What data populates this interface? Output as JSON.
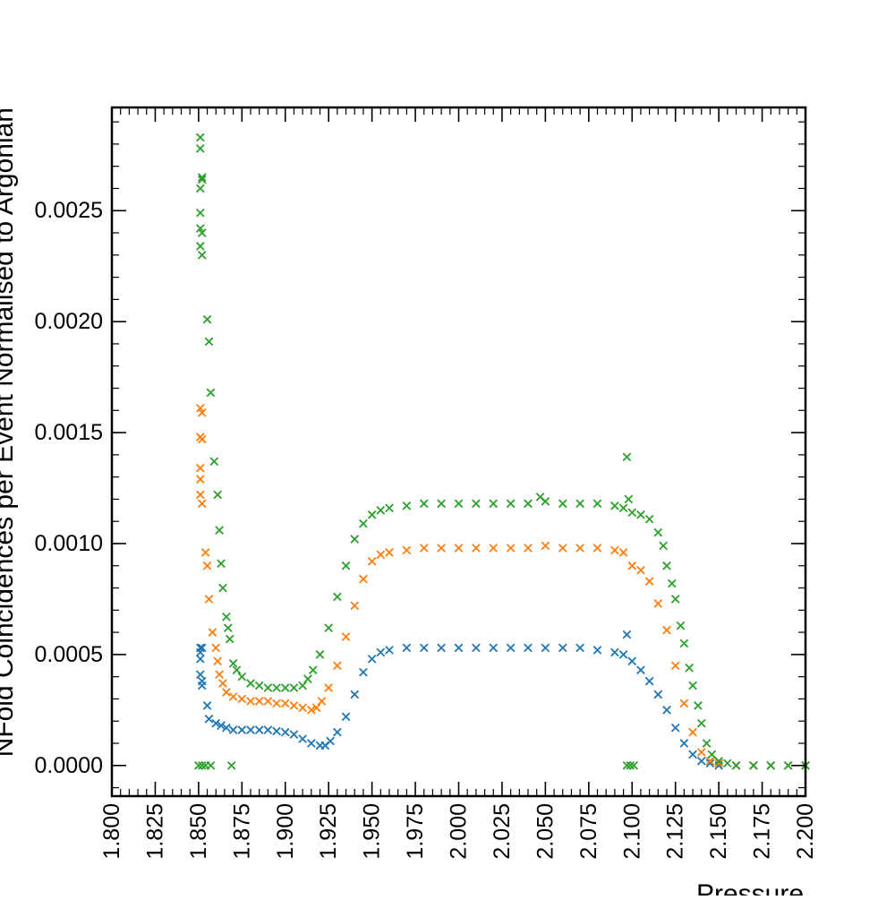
{
  "chart_data": {
    "type": "scatter",
    "xlabel": "Pressure",
    "ylabel": "NFold Coincidences per Event Normalised to Argonian",
    "xlim": [
      1.8,
      2.2
    ],
    "ylim": [
      -0.000138,
      0.002965
    ],
    "xticks": [
      "1.800",
      "1.825",
      "1.850",
      "1.875",
      "1.900",
      "1.925",
      "1.950",
      "1.975",
      "2.000",
      "2.025",
      "2.050",
      "2.075",
      "2.100",
      "2.125",
      "2.150",
      "2.175",
      "2.200"
    ],
    "yticks": [
      "0.0000",
      "0.0005",
      "0.0010",
      "0.0015",
      "0.0020",
      "0.0025"
    ],
    "marker": "x",
    "grid": false,
    "legend": "none",
    "series": [
      {
        "color": "#1f77b4",
        "points": [
          [
            1.851,
            0.00053
          ],
          [
            1.851,
            0.00051
          ],
          [
            1.851,
            0.00048
          ],
          [
            1.851,
            0.00041
          ],
          [
            1.852,
            0.00038
          ],
          [
            1.852,
            0.00036
          ],
          [
            1.852,
            0.00053
          ],
          [
            1.855,
            0.00027
          ],
          [
            1.856,
            0.00021
          ],
          [
            1.86,
            0.00019
          ],
          [
            1.863,
            0.00018
          ],
          [
            1.866,
            0.00017
          ],
          [
            1.87,
            0.00016
          ],
          [
            1.875,
            0.00016
          ],
          [
            1.88,
            0.00016
          ],
          [
            1.885,
            0.00016
          ],
          [
            1.89,
            0.00016
          ],
          [
            1.895,
            0.000155
          ],
          [
            1.9,
            0.00015
          ],
          [
            1.905,
            0.00014
          ],
          [
            1.91,
            0.00012
          ],
          [
            1.915,
            0.0001
          ],
          [
            1.92,
            9e-05
          ],
          [
            1.923,
            9e-05
          ],
          [
            1.926,
            0.00011
          ],
          [
            1.93,
            0.00015
          ],
          [
            1.935,
            0.00022
          ],
          [
            1.94,
            0.00032
          ],
          [
            1.945,
            0.00042
          ],
          [
            1.95,
            0.00048
          ],
          [
            1.955,
            0.00051
          ],
          [
            1.96,
            0.00052
          ],
          [
            1.97,
            0.00053
          ],
          [
            1.98,
            0.00053
          ],
          [
            1.99,
            0.00053
          ],
          [
            2.0,
            0.00053
          ],
          [
            2.01,
            0.00053
          ],
          [
            2.02,
            0.00053
          ],
          [
            2.03,
            0.00053
          ],
          [
            2.04,
            0.00053
          ],
          [
            2.05,
            0.00053
          ],
          [
            2.06,
            0.00053
          ],
          [
            2.07,
            0.00053
          ],
          [
            2.08,
            0.00052
          ],
          [
            2.09,
            0.00051
          ],
          [
            2.095,
            0.0005
          ],
          [
            2.097,
            0.00059
          ],
          [
            2.1,
            0.00047
          ],
          [
            2.105,
            0.00043
          ],
          [
            2.11,
            0.00038
          ],
          [
            2.115,
            0.00032
          ],
          [
            2.12,
            0.00025
          ],
          [
            2.125,
            0.00017
          ],
          [
            2.13,
            0.0001
          ],
          [
            2.135,
            5e-05
          ],
          [
            2.14,
            2e-05
          ],
          [
            2.145,
            1e-05
          ],
          [
            2.15,
            0.0
          ],
          [
            2.16,
            0.0
          ],
          [
            2.17,
            0.0
          ],
          [
            2.18,
            0.0
          ],
          [
            2.19,
            0.0
          ],
          [
            2.2,
            0.0
          ]
        ]
      },
      {
        "color": "#ff7f0e",
        "points": [
          [
            1.851,
            0.00161
          ],
          [
            1.851,
            0.00148
          ],
          [
            1.851,
            0.00134
          ],
          [
            1.851,
            0.00129
          ],
          [
            1.851,
            0.00122
          ],
          [
            1.852,
            0.00118
          ],
          [
            1.852,
            0.00159
          ],
          [
            1.852,
            0.00147
          ],
          [
            1.854,
            0.00096
          ],
          [
            1.855,
            0.0009
          ],
          [
            1.856,
            0.00075
          ],
          [
            1.858,
            0.0006
          ],
          [
            1.86,
            0.00053
          ],
          [
            1.861,
            0.00047
          ],
          [
            1.862,
            0.00041
          ],
          [
            1.864,
            0.00037
          ],
          [
            1.866,
            0.00033
          ],
          [
            1.87,
            0.00031
          ],
          [
            1.875,
            0.0003
          ],
          [
            1.88,
            0.00029
          ],
          [
            1.885,
            0.00029
          ],
          [
            1.89,
            0.00029
          ],
          [
            1.895,
            0.00028
          ],
          [
            1.9,
            0.00028
          ],
          [
            1.905,
            0.00027
          ],
          [
            1.91,
            0.00026
          ],
          [
            1.915,
            0.00025
          ],
          [
            1.918,
            0.00026
          ],
          [
            1.921,
            0.00029
          ],
          [
            1.925,
            0.00035
          ],
          [
            1.93,
            0.00045
          ],
          [
            1.935,
            0.00058
          ],
          [
            1.94,
            0.00072
          ],
          [
            1.945,
            0.00084
          ],
          [
            1.95,
            0.00092
          ],
          [
            1.955,
            0.00095
          ],
          [
            1.96,
            0.00096
          ],
          [
            1.97,
            0.00097
          ],
          [
            1.98,
            0.00098
          ],
          [
            1.99,
            0.00098
          ],
          [
            2.0,
            0.00098
          ],
          [
            2.01,
            0.00098
          ],
          [
            2.02,
            0.00098
          ],
          [
            2.03,
            0.00098
          ],
          [
            2.04,
            0.00098
          ],
          [
            2.05,
            0.00099
          ],
          [
            2.06,
            0.00098
          ],
          [
            2.07,
            0.00098
          ],
          [
            2.08,
            0.00098
          ],
          [
            2.09,
            0.00097
          ],
          [
            2.095,
            0.00096
          ],
          [
            2.1,
            0.0009
          ],
          [
            2.105,
            0.00088
          ],
          [
            2.11,
            0.00083
          ],
          [
            2.115,
            0.00073
          ],
          [
            2.12,
            0.00061
          ],
          [
            2.125,
            0.00045
          ],
          [
            2.13,
            0.00028
          ],
          [
            2.135,
            0.00015
          ],
          [
            2.14,
            6e-05
          ],
          [
            2.145,
            2e-05
          ],
          [
            2.15,
            1e-05
          ],
          [
            2.16,
            0.0
          ],
          [
            2.17,
            0.0
          ],
          [
            2.18,
            0.0
          ],
          [
            2.19,
            0.0
          ],
          [
            2.2,
            0.0
          ]
        ]
      },
      {
        "color": "#2ca02c",
        "points": [
          [
            1.85,
            0.0
          ],
          [
            1.852,
            0.0
          ],
          [
            1.854,
            0.0
          ],
          [
            1.857,
            0.0
          ],
          [
            1.869,
            0.0
          ],
          [
            1.851,
            0.00283
          ],
          [
            1.851,
            0.00278
          ],
          [
            1.852,
            0.00265
          ],
          [
            1.851,
            0.0026
          ],
          [
            1.851,
            0.00249
          ],
          [
            1.851,
            0.00242
          ],
          [
            1.852,
            0.0024
          ],
          [
            1.851,
            0.00234
          ],
          [
            1.852,
            0.0023
          ],
          [
            1.852,
            0.00264
          ],
          [
            1.855,
            0.00201
          ],
          [
            1.856,
            0.00191
          ],
          [
            1.857,
            0.00168
          ],
          [
            1.859,
            0.00137
          ],
          [
            1.861,
            0.00122
          ],
          [
            1.862,
            0.00106
          ],
          [
            1.863,
            0.00091
          ],
          [
            1.864,
            0.0008
          ],
          [
            1.866,
            0.00067
          ],
          [
            1.867,
            0.00062
          ],
          [
            1.868,
            0.00057
          ],
          [
            1.87,
            0.00046
          ],
          [
            1.872,
            0.00043
          ],
          [
            1.875,
            0.0004
          ],
          [
            1.88,
            0.00037
          ],
          [
            1.885,
            0.00036
          ],
          [
            1.89,
            0.00035
          ],
          [
            1.895,
            0.00035
          ],
          [
            1.9,
            0.00035
          ],
          [
            1.905,
            0.00035
          ],
          [
            1.91,
            0.00036
          ],
          [
            1.913,
            0.00039
          ],
          [
            1.916,
            0.00043
          ],
          [
            1.92,
            0.0005
          ],
          [
            1.925,
            0.00062
          ],
          [
            1.93,
            0.00076
          ],
          [
            1.935,
            0.0009
          ],
          [
            1.94,
            0.00102
          ],
          [
            1.945,
            0.00109
          ],
          [
            1.95,
            0.00113
          ],
          [
            1.955,
            0.00115
          ],
          [
            1.96,
            0.00116
          ],
          [
            1.97,
            0.00117
          ],
          [
            1.98,
            0.00118
          ],
          [
            1.99,
            0.00118
          ],
          [
            2.0,
            0.00118
          ],
          [
            2.01,
            0.00118
          ],
          [
            2.02,
            0.00118
          ],
          [
            2.03,
            0.00118
          ],
          [
            2.04,
            0.00118
          ],
          [
            2.047,
            0.00121
          ],
          [
            2.05,
            0.00119
          ],
          [
            2.06,
            0.00118
          ],
          [
            2.07,
            0.00118
          ],
          [
            2.08,
            0.00118
          ],
          [
            2.09,
            0.00117
          ],
          [
            2.095,
            0.00116
          ],
          [
            2.097,
            0.00139
          ],
          [
            2.097,
            0.0
          ],
          [
            2.099,
            0.0
          ],
          [
            2.101,
            0.0
          ],
          [
            2.098,
            0.0012
          ],
          [
            2.1,
            0.00114
          ],
          [
            2.105,
            0.00113
          ],
          [
            2.11,
            0.00111
          ],
          [
            2.115,
            0.00105
          ],
          [
            2.118,
            0.00099
          ],
          [
            2.12,
            0.0009
          ],
          [
            2.123,
            0.00082
          ],
          [
            2.125,
            0.00075
          ],
          [
            2.128,
            0.00063
          ],
          [
            2.13,
            0.00055
          ],
          [
            2.133,
            0.00044
          ],
          [
            2.135,
            0.00036
          ],
          [
            2.138,
            0.00027
          ],
          [
            2.14,
            0.00019
          ],
          [
            2.143,
            0.0001
          ],
          [
            2.146,
            5e-05
          ],
          [
            2.15,
            2e-05
          ],
          [
            2.155,
            1e-05
          ],
          [
            2.16,
            0.0
          ],
          [
            2.17,
            0.0
          ],
          [
            2.18,
            0.0
          ],
          [
            2.19,
            0.0
          ],
          [
            2.2,
            0.0
          ]
        ]
      }
    ]
  }
}
